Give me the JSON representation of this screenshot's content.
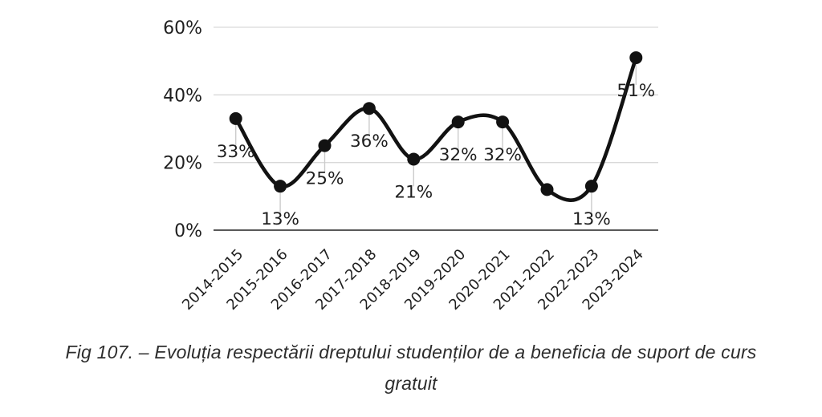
{
  "chart_data": {
    "type": "line",
    "categories": [
      "2014-2015",
      "2015-2016",
      "2016-2017",
      "2017-2018",
      "2018-2019",
      "2019-2020",
      "2020-2021",
      "2021-2022",
      "2022-2023",
      "2023-2024"
    ],
    "values": [
      33,
      13,
      25,
      36,
      21,
      32,
      32,
      12,
      13,
      51
    ],
    "point_labels": [
      "33%",
      "13%",
      "25%",
      "36%",
      "21%",
      "32%",
      "32%",
      "",
      "13%",
      "51%"
    ],
    "title": "",
    "xlabel": "",
    "ylabel": "",
    "ylim": [
      0,
      60
    ],
    "yticks": [
      0,
      20,
      40,
      60
    ],
    "ytick_labels": [
      "0%",
      "20%",
      "40%",
      "60%"
    ],
    "grid": "horizontal",
    "legend": "none",
    "smooth": true,
    "line_color": "#121212",
    "marker_color": "#121212",
    "grid_color": "#d9d9d9",
    "axis_color": "#595959",
    "leader_color": "#cccccc",
    "text_color": "#1f1f1f"
  },
  "caption": {
    "line1": "Fig 107. – Evoluția respectării dreptului studenților de a beneficia de suport de curs",
    "line2": "gratuit"
  }
}
